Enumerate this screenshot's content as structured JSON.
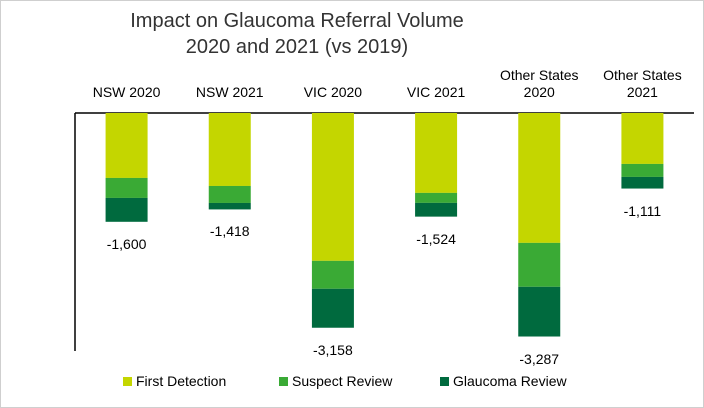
{
  "chart_data": {
    "type": "stacked_bar",
    "title": "Impact on Glaucoma Referral Volume",
    "subtitle": "2020 and 2021 (vs 2019)",
    "categories": [
      "NSW 2020",
      "NSW 2021",
      "VIC 2020",
      "VIC 2021",
      "Other States 2020",
      "Other States 2021"
    ],
    "series": [
      {
        "name": "First Detection",
        "color": "#c4d600",
        "values": [
          -955,
          -1073,
          -2174,
          -1175,
          -1910,
          -749
        ]
      },
      {
        "name": "Suspect Review",
        "color": "#3aaa35",
        "values": [
          -294,
          -250,
          -411,
          -147,
          -646,
          -191
        ]
      },
      {
        "name": "Glaucoma Review",
        "color": "#006a3e",
        "values": [
          -351,
          -95,
          -573,
          -202,
          -731,
          -171
        ]
      }
    ],
    "totals": [
      -1600,
      -1418,
      -3158,
      -1524,
      -3287,
      -1111
    ],
    "total_labels": [
      "-1,600",
      "-1,418",
      "-3,158",
      "-1,524",
      "-3,287",
      "-1,111"
    ],
    "ylim": [
      -3500,
      0
    ],
    "legend": "bottom"
  }
}
